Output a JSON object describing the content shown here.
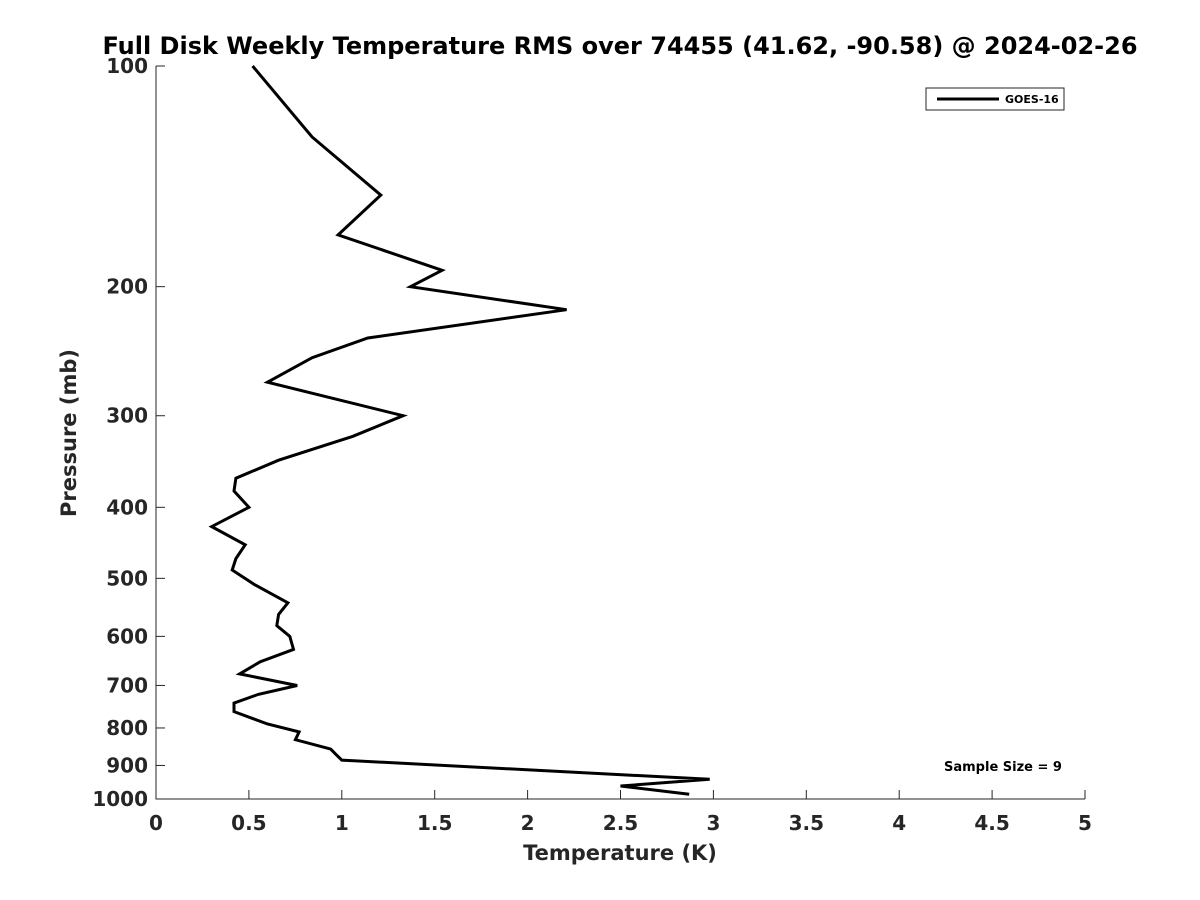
{
  "chart_data": {
    "type": "line",
    "title": "Full Disk Weekly Temperature RMS over 74455 (41.62, -90.58) @ 2024-02-26",
    "xlabel": "Temperature (K)",
    "ylabel": "Pressure (mb)",
    "xlim": [
      0,
      5
    ],
    "ylim": [
      100,
      1000
    ],
    "y_scale": "log",
    "y_reversed": true,
    "x_ticks": [
      "0",
      "0.5",
      "1",
      "1.5",
      "2",
      "2.5",
      "3",
      "3.5",
      "4",
      "4.5",
      "5"
    ],
    "y_ticks": [
      "100",
      "200",
      "300",
      "400",
      "500",
      "600",
      "700",
      "800",
      "900",
      "1000"
    ],
    "grid": false,
    "legend_position": "top-right",
    "annotation": "Sample Size = 9",
    "series": [
      {
        "name": "GOES-16",
        "color": "#000000",
        "points": [
          [
            0.52,
            100
          ],
          [
            0.84,
            125
          ],
          [
            1.21,
            150
          ],
          [
            0.98,
            170
          ],
          [
            1.54,
            190
          ],
          [
            1.37,
            200
          ],
          [
            2.21,
            215
          ],
          [
            1.14,
            235
          ],
          [
            0.84,
            250
          ],
          [
            0.6,
            270
          ],
          [
            1.33,
            300
          ],
          [
            1.06,
            320
          ],
          [
            0.66,
            345
          ],
          [
            0.43,
            365
          ],
          [
            0.42,
            380
          ],
          [
            0.5,
            400
          ],
          [
            0.3,
            425
          ],
          [
            0.48,
            450
          ],
          [
            0.43,
            470
          ],
          [
            0.41,
            487
          ],
          [
            0.53,
            510
          ],
          [
            0.71,
            540
          ],
          [
            0.66,
            560
          ],
          [
            0.65,
            580
          ],
          [
            0.72,
            600
          ],
          [
            0.74,
            625
          ],
          [
            0.56,
            650
          ],
          [
            0.45,
            675
          ],
          [
            0.76,
            700
          ],
          [
            0.55,
            720
          ],
          [
            0.42,
            740
          ],
          [
            0.42,
            760
          ],
          [
            0.6,
            790
          ],
          [
            0.77,
            810
          ],
          [
            0.75,
            830
          ],
          [
            0.94,
            855
          ],
          [
            0.97,
            870
          ],
          [
            1.0,
            885
          ],
          [
            2.98,
            940
          ],
          [
            2.5,
            960
          ],
          [
            2.87,
            985
          ]
        ]
      }
    ]
  }
}
